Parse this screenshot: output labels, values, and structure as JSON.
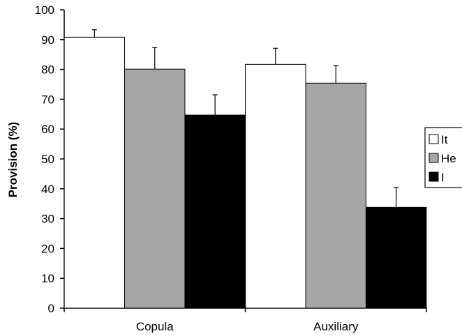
{
  "chart_data": {
    "type": "bar",
    "categories": [
      "Copula",
      "Auxiliary"
    ],
    "series": [
      {
        "name": "It",
        "values": [
          90.8,
          81.7
        ],
        "errors": [
          2.5,
          5.4
        ],
        "color": "#ffffff"
      },
      {
        "name": "He",
        "values": [
          80.1,
          75.4
        ],
        "errors": [
          7.2,
          5.9
        ],
        "color": "#a6a6a6"
      },
      {
        "name": "I",
        "values": [
          64.7,
          33.8
        ],
        "errors": [
          6.8,
          6.6
        ],
        "color": "#000000"
      }
    ],
    "ylabel": "Provision (%)",
    "xlabel": "",
    "ylim": [
      0,
      100
    ],
    "yticks": [
      "0",
      "10",
      "20",
      "30",
      "40",
      "50",
      "60",
      "70",
      "80",
      "90",
      "100"
    ],
    "grid": false,
    "legend_position": "right"
  }
}
